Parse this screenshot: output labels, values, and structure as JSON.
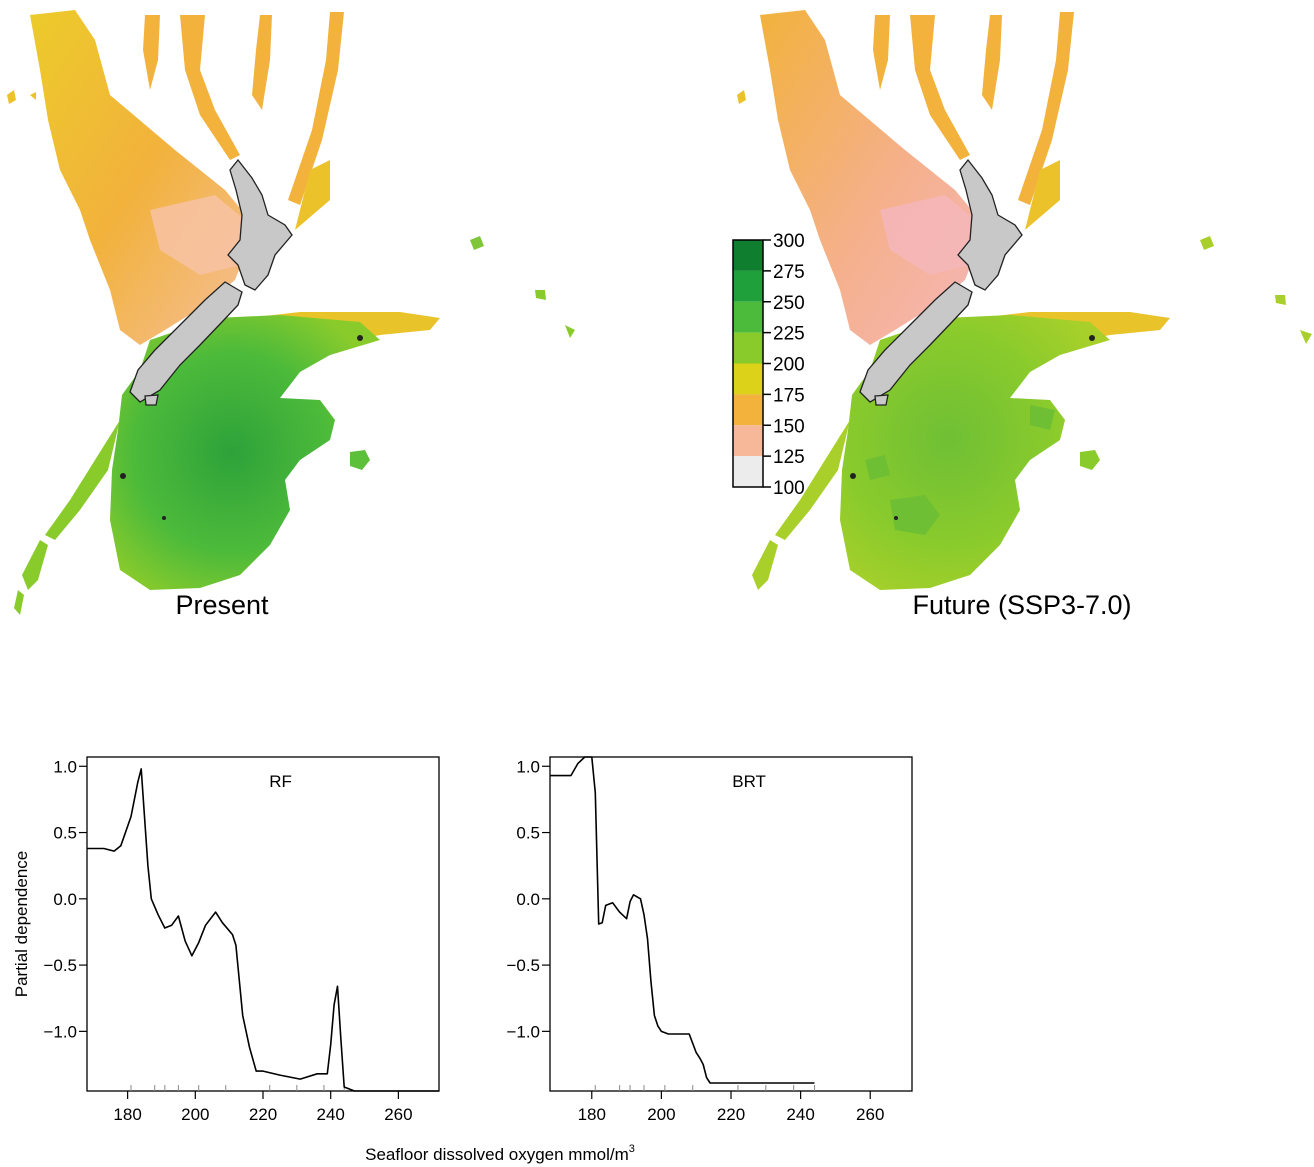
{
  "maps": {
    "present_label": "Present",
    "future_label": "Future (SSP3-7.0)"
  },
  "colorbar": {
    "ticks": [
      "300",
      "275",
      "250",
      "225",
      "200",
      "175",
      "150",
      "125",
      "100"
    ],
    "colors": [
      "#0f7f2f",
      "#1fa03a",
      "#4cba3a",
      "#8acb2c",
      "#dcd21a",
      "#f2b23c",
      "#f7b89a",
      "#f7d4d0",
      "#ececec"
    ]
  },
  "shared_xlabel": "Seafloor dissolved oxygen mmol/m",
  "shared_xlabel_sup": "3",
  "chart_data": [
    {
      "type": "line",
      "title": "RF",
      "ylabel": "Partial dependence",
      "xlim": [
        168,
        272
      ],
      "ylim": [
        -1.45,
        1.07
      ],
      "xticks": [
        "180",
        "200",
        "220",
        "240",
        "260"
      ],
      "yticks": [
        "1.0",
        "0.5",
        "0.0",
        "−0.5",
        "−1.0"
      ],
      "rug": [
        181,
        188,
        191,
        195,
        201,
        209,
        222,
        230,
        238,
        244
      ],
      "x": [
        168,
        173,
        176,
        178,
        181,
        183,
        184,
        186,
        187,
        189,
        191,
        193,
        195,
        197,
        199,
        201,
        203,
        206,
        208,
        211,
        212,
        214,
        216,
        218,
        220,
        225,
        231,
        236,
        239,
        240,
        241,
        242,
        243,
        244,
        247,
        250,
        272
      ],
      "y": [
        0.38,
        0.38,
        0.36,
        0.4,
        0.62,
        0.88,
        0.98,
        0.25,
        0.0,
        -0.12,
        -0.22,
        -0.2,
        -0.13,
        -0.32,
        -0.43,
        -0.33,
        -0.2,
        -0.1,
        -0.18,
        -0.27,
        -0.35,
        -0.88,
        -1.12,
        -1.3,
        -1.3,
        -1.33,
        -1.36,
        -1.32,
        -1.32,
        -1.1,
        -0.8,
        -0.66,
        -1.05,
        -1.42,
        -1.45,
        -1.45,
        -1.45
      ]
    },
    {
      "type": "line",
      "title": "BRT",
      "ylabel": "",
      "xlim": [
        168,
        272
      ],
      "ylim": [
        -1.45,
        1.07
      ],
      "xticks": [
        "180",
        "200",
        "220",
        "240",
        "260"
      ],
      "yticks": [
        "1.0",
        "0.5",
        "0.0",
        "−0.5",
        "−1.0"
      ],
      "rug": [
        181,
        188,
        191,
        195,
        201,
        209,
        222,
        230,
        238,
        244
      ],
      "x": [
        168,
        174,
        176,
        178,
        180,
        181,
        182,
        183,
        184,
        186,
        188,
        190,
        191,
        192,
        194,
        195,
        196,
        197,
        198,
        199,
        200,
        202,
        205,
        208,
        209,
        210,
        211,
        212,
        213,
        214,
        220,
        230,
        244
      ],
      "y": [
        0.93,
        0.93,
        1.02,
        1.07,
        1.07,
        0.8,
        -0.19,
        -0.18,
        -0.05,
        -0.03,
        -0.1,
        -0.15,
        -0.02,
        0.03,
        0.0,
        -0.12,
        -0.3,
        -0.62,
        -0.88,
        -0.96,
        -1.0,
        -1.02,
        -1.02,
        -1.02,
        -1.09,
        -1.16,
        -1.2,
        -1.25,
        -1.35,
        -1.39,
        -1.39,
        -1.39,
        -1.39
      ]
    }
  ]
}
